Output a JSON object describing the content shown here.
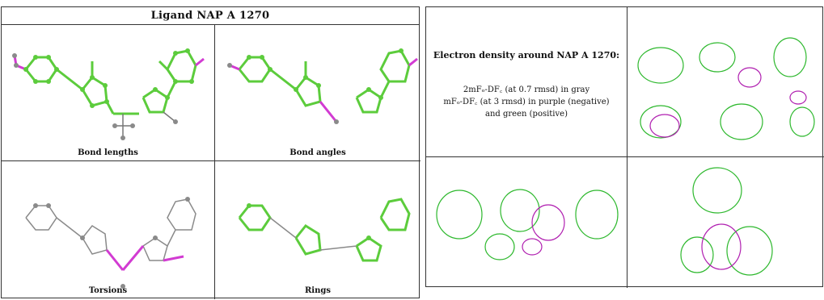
{
  "left_panel": {
    "title": "Ligand NAP A 1270",
    "cells": [
      {
        "id": "bond-lengths",
        "label": "Bond lengths"
      },
      {
        "id": "bond-angles",
        "label": "Bond angles"
      },
      {
        "id": "torsions",
        "label": "Torsions"
      },
      {
        "id": "rings",
        "label": "Rings"
      }
    ]
  },
  "right_panel": {
    "heading": "Electron density around NAP A 1270:",
    "lines": [
      "2mFₒ-DF꜀ (at 0.7 rmsd) in gray",
      "mFₒ-DF꜀ (at 3 rmsd) in purple (negative)",
      "and green (positive)"
    ]
  },
  "colors": {
    "bond_green": "#5ccc3c",
    "outlier_magenta": "#d23bd2",
    "atom_gray": "#8a8a8a",
    "density_green": "#2db82d",
    "density_purple": "#b01fb0"
  }
}
